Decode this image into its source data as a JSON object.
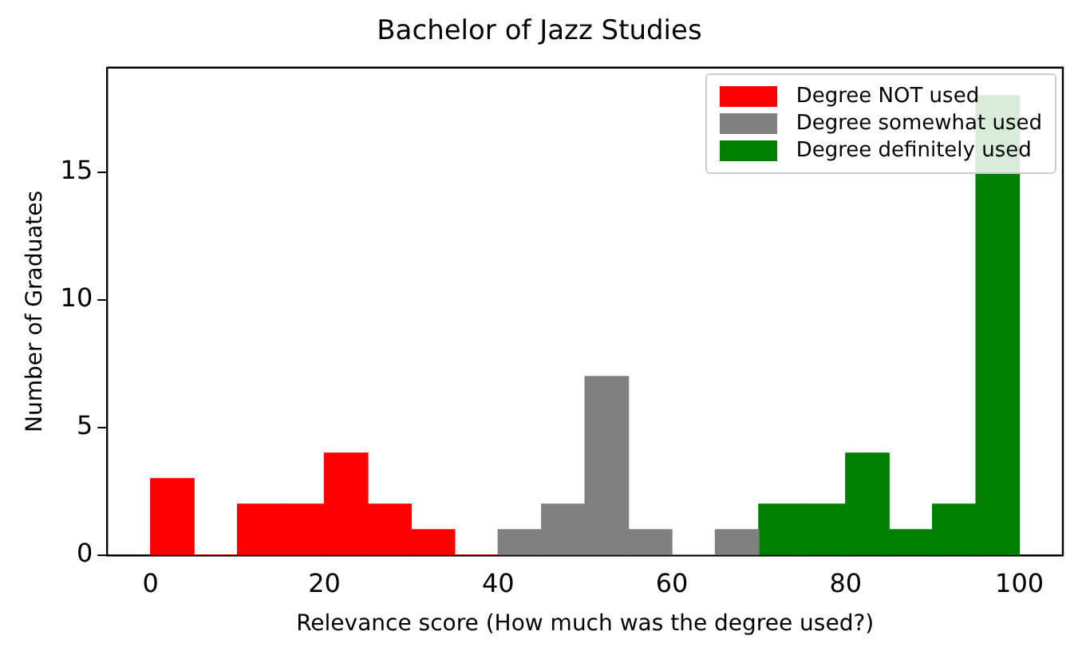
{
  "chart_data": {
    "type": "histogram",
    "title": "Bachelor of Jazz Studies",
    "xlabel": "Relevance score (How much was the degree used?)",
    "ylabel": "Number of Graduates",
    "bins": [
      0,
      5,
      10,
      15,
      20,
      25,
      30,
      35,
      40,
      45,
      50,
      55,
      60,
      65,
      70,
      75,
      80,
      85,
      90,
      95,
      100
    ],
    "series": [
      {
        "name": "Degree NOT used",
        "color": "#ff0000",
        "values": [
          3,
          0,
          2,
          2,
          4,
          2,
          1,
          0,
          null,
          null,
          null,
          null,
          null,
          null,
          null,
          null,
          null,
          null,
          null,
          null
        ]
      },
      {
        "name": "Degree somewhat used",
        "color": "#808080",
        "values": [
          null,
          null,
          null,
          null,
          null,
          null,
          null,
          null,
          1,
          2,
          7,
          1,
          0,
          1,
          null,
          null,
          null,
          null,
          null,
          null
        ]
      },
      {
        "name": "Degree definitely used",
        "color": "#008000",
        "values": [
          null,
          null,
          null,
          null,
          null,
          null,
          null,
          null,
          null,
          null,
          null,
          null,
          null,
          null,
          2,
          2,
          4,
          1,
          2,
          18
        ]
      }
    ],
    "xlim": [
      -5,
      105
    ],
    "xticks": [
      0,
      20,
      40,
      60,
      80,
      100
    ],
    "ylim": [
      0,
      19.1
    ],
    "yticks": [
      0,
      5,
      10,
      15
    ],
    "legend": "top right"
  }
}
